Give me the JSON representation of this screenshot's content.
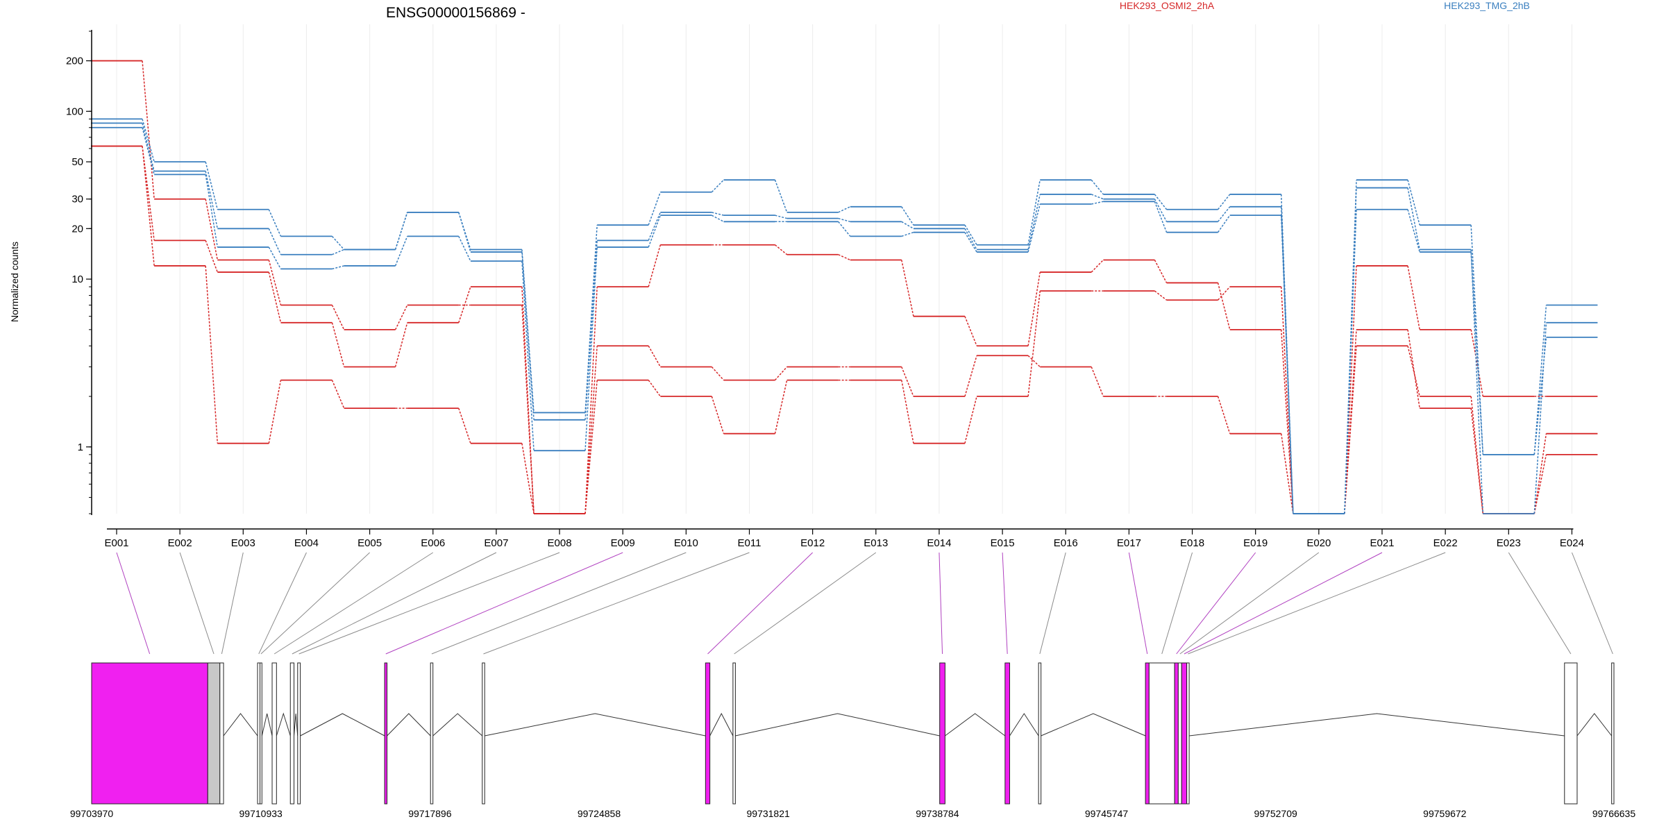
{
  "chart_data": {
    "type": "line",
    "title": "ENSG00000156869 -",
    "ylabel": "Normalized counts",
    "yscale": "log",
    "ylim": [
      0.4,
      300
    ],
    "yticks": [
      1,
      10,
      20,
      30,
      50,
      100,
      200
    ],
    "categories": [
      "E001",
      "E002",
      "E003",
      "E004",
      "E005",
      "E006",
      "E007",
      "E008",
      "E009",
      "E010",
      "E011",
      "E012",
      "E013",
      "E014",
      "E015",
      "E016",
      "E017",
      "E018",
      "E019",
      "E020",
      "E021",
      "E022",
      "E023",
      "E024"
    ],
    "legend": [
      {
        "name": "HEK293_OSMI2_2hA",
        "color": "#d62728"
      },
      {
        "name": "HEK293_TMG_2hB",
        "color": "#3a7fbf"
      }
    ],
    "series": [
      {
        "group": "HEK293_OSMI2_2hA",
        "color": "#d62728",
        "values": [
          200,
          30,
          13,
          7,
          5,
          7,
          7,
          0.4,
          9,
          16,
          16,
          14,
          13,
          6,
          4,
          11,
          13,
          9.5,
          5,
          0.4,
          12,
          5,
          2,
          2
        ]
      },
      {
        "group": "HEK293_OSMI2_2hA",
        "color": "#d62728",
        "values": [
          62,
          17,
          11,
          5.5,
          3,
          5.5,
          9,
          0.4,
          4,
          3,
          2.5,
          3,
          3,
          2,
          3.5,
          3,
          2,
          2,
          1.2,
          0.4,
          4,
          2,
          0.4,
          1.2
        ]
      },
      {
        "group": "HEK293_OSMI2_2hA",
        "color": "#d62728",
        "values": [
          62,
          12,
          1.05,
          2.5,
          1.7,
          1.7,
          1.05,
          0.4,
          2.5,
          2,
          1.2,
          2.5,
          2.5,
          1.05,
          2,
          8.5,
          8.5,
          7.5,
          9,
          0.4,
          5,
          1.7,
          0.4,
          0.9
        ]
      },
      {
        "group": "HEK293_TMG_2hB",
        "color": "#3a7fbf",
        "values": [
          90,
          50,
          26,
          18,
          15,
          25,
          15,
          1.6,
          21,
          33,
          39,
          25,
          27,
          21,
          16,
          39,
          32,
          26,
          32,
          0.4,
          39,
          21,
          0.9,
          7
        ]
      },
      {
        "group": "HEK293_TMG_2hB",
        "color": "#3a7fbf",
        "values": [
          85,
          44,
          20,
          14,
          15,
          25,
          14.5,
          1.45,
          17,
          25,
          24,
          23,
          22,
          20,
          15,
          32,
          30,
          22,
          27,
          0.4,
          35,
          15,
          0.4,
          5.5
        ]
      },
      {
        "group": "HEK293_TMG_2hB",
        "color": "#3a7fbf",
        "values": [
          80,
          42,
          15.5,
          11.5,
          12,
          18,
          12.8,
          0.95,
          15.5,
          24,
          22,
          22,
          18,
          19,
          14.5,
          28,
          29,
          19,
          24,
          0.4,
          26,
          14.5,
          0.9,
          4.5
        ]
      }
    ],
    "genome_track": {
      "position_ticks": [
        "99703970",
        "99710933",
        "99717896",
        "99724858",
        "99731821",
        "99738784",
        "99745747",
        "99752709",
        "99759672",
        "99766635"
      ],
      "range": [
        99703970,
        99766635
      ],
      "exons": [
        {
          "id": "E001",
          "start": 99703970,
          "end": 99708750,
          "color": "#f020f0"
        },
        {
          "id": "E002",
          "start": 99708750,
          "end": 99709250,
          "color": "#c8c8c8"
        },
        {
          "id": "E003",
          "start": 99709250,
          "end": 99709400,
          "color": "#ffffff"
        },
        {
          "id": "E004",
          "start": 99710800,
          "end": 99710900,
          "color": "#ffffff"
        },
        {
          "id": "E005",
          "start": 99710900,
          "end": 99710980,
          "color": "#ffffff"
        },
        {
          "id": "E006",
          "start": 99711400,
          "end": 99711580,
          "color": "#ffffff"
        },
        {
          "id": "E007",
          "start": 99712150,
          "end": 99712300,
          "color": "#ffffff"
        },
        {
          "id": "E008",
          "start": 99712450,
          "end": 99712560,
          "color": "#ffffff"
        },
        {
          "id": "E009",
          "start": 99716030,
          "end": 99716130,
          "color": "#f020f0"
        },
        {
          "id": "E010",
          "start": 99717920,
          "end": 99718020,
          "color": "#ffffff"
        },
        {
          "id": "E011",
          "start": 99720050,
          "end": 99720150,
          "color": "#ffffff"
        },
        {
          "id": "E012",
          "start": 99729240,
          "end": 99729420,
          "color": "#f020f0"
        },
        {
          "id": "E013",
          "start": 99730370,
          "end": 99730470,
          "color": "#ffffff"
        },
        {
          "id": "E014",
          "start": 99738880,
          "end": 99739100,
          "color": "#f020f0"
        },
        {
          "id": "E015",
          "start": 99741570,
          "end": 99741760,
          "color": "#f020f0"
        },
        {
          "id": "E016",
          "start": 99742950,
          "end": 99743050,
          "color": "#ffffff"
        },
        {
          "id": "E017",
          "start": 99747350,
          "end": 99747500,
          "color": "#f020f0"
        },
        {
          "id": "E018",
          "start": 99747500,
          "end": 99748550,
          "color": "#ffffff"
        },
        {
          "id": "E019",
          "start": 99748550,
          "end": 99748700,
          "color": "#f020f0"
        },
        {
          "id": "E020",
          "start": 99748700,
          "end": 99748840,
          "color": "#ffffff"
        },
        {
          "id": "E021",
          "start": 99748840,
          "end": 99749050,
          "color": "#f020f0"
        },
        {
          "id": "E022",
          "start": 99749050,
          "end": 99749150,
          "color": "#ffffff"
        },
        {
          "id": "E023",
          "start": 99764600,
          "end": 99765120,
          "color": "#ffffff"
        },
        {
          "id": "E024",
          "start": 99766540,
          "end": 99766635,
          "color": "#ffffff"
        }
      ]
    }
  }
}
